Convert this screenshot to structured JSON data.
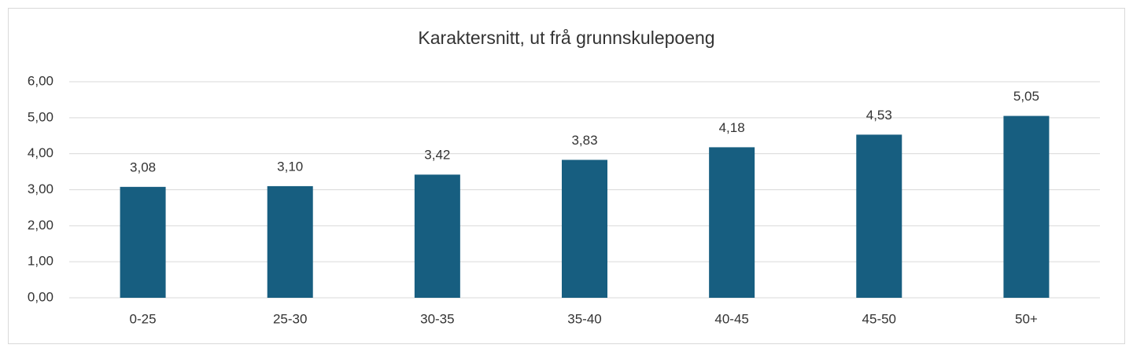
{
  "chart_data": {
    "type": "bar",
    "title": "Karaktersnitt, ut frå grunnskulepoeng",
    "categories": [
      "0-25",
      "25-30",
      "30-35",
      "35-40",
      "40-45",
      "45-50",
      "50+"
    ],
    "values": [
      3.08,
      3.1,
      3.42,
      3.83,
      4.18,
      4.53,
      5.05
    ],
    "value_labels": [
      "3,08",
      "3,10",
      "3,42",
      "3,83",
      "4,18",
      "4,53",
      "5,05"
    ],
    "color": "#175e80",
    "ylim": [
      0,
      6
    ],
    "yticks": [
      {
        "value": 0,
        "label": "0,00"
      },
      {
        "value": 1,
        "label": "1,00"
      },
      {
        "value": 2,
        "label": "2,00"
      },
      {
        "value": 3,
        "label": "3,00"
      },
      {
        "value": 4,
        "label": "4,00"
      },
      {
        "value": 5,
        "label": "5,00"
      },
      {
        "value": 6,
        "label": "6,00"
      }
    ],
    "grid": true
  }
}
